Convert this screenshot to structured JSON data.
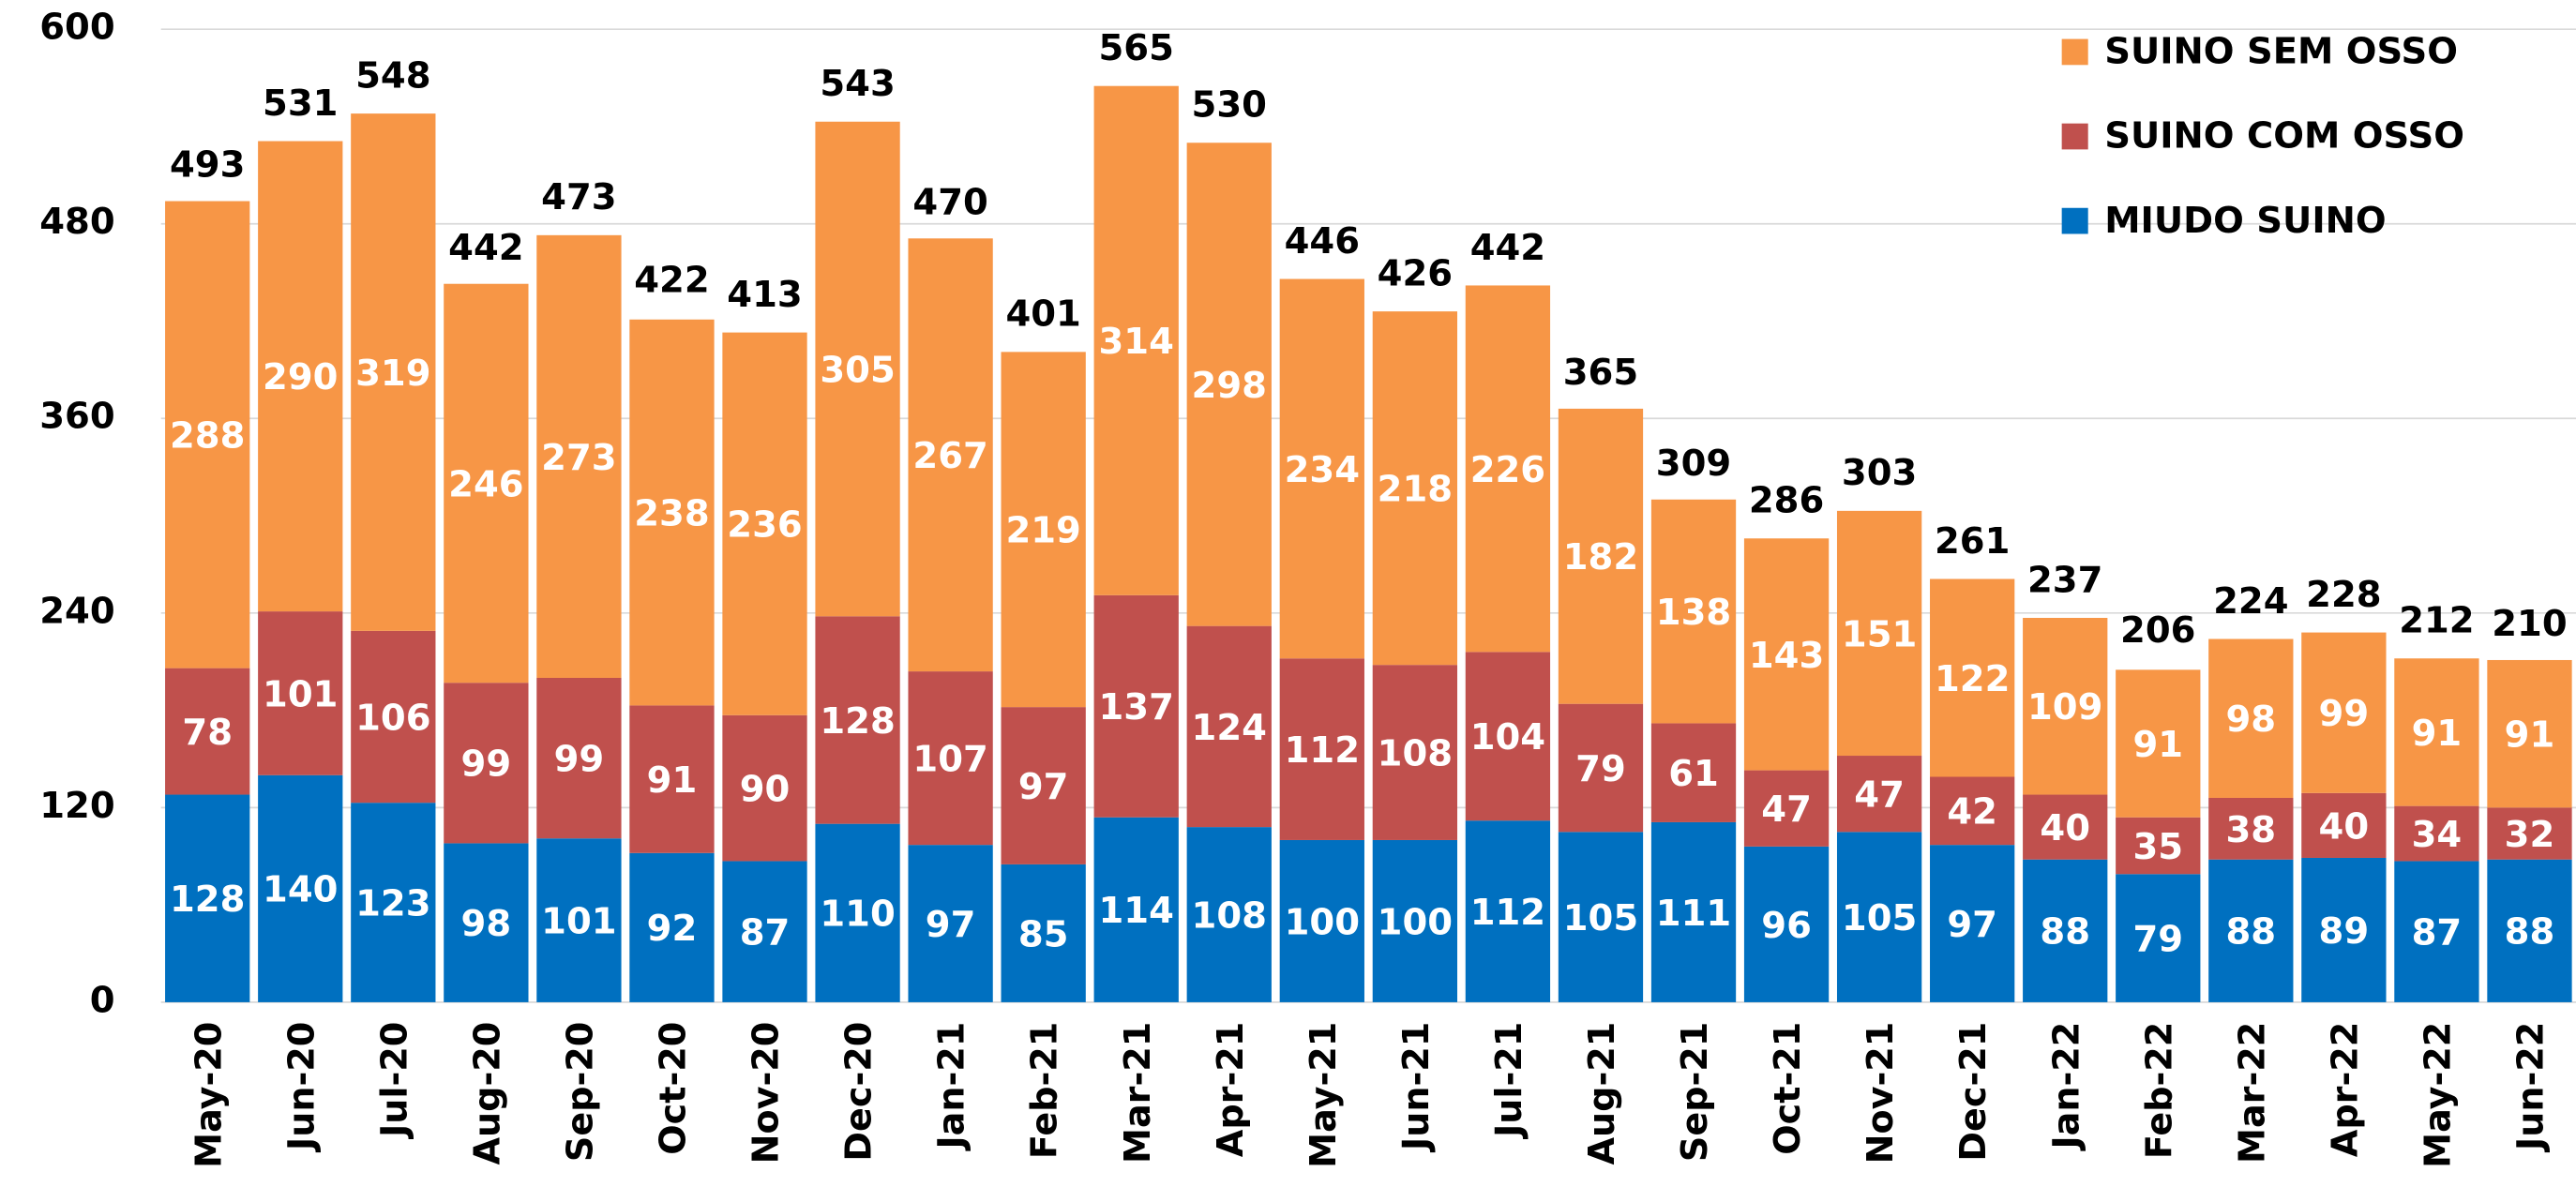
{
  "chart_data": {
    "type": "stacked_bar",
    "categories": [
      "May-20",
      "Jun-20",
      "Jul-20",
      "Aug-20",
      "Sep-20",
      "Oct-20",
      "Nov-20",
      "Dec-20",
      "Jan-21",
      "Feb-21",
      "Mar-21",
      "Apr-21",
      "May-21",
      "Jun-21",
      "Jul-21",
      "Aug-21",
      "Sep-21",
      "Oct-21",
      "Nov-21",
      "Dec-21",
      "Jan-22",
      "Feb-22",
      "Mar-22",
      "Apr-22",
      "May-22",
      "Jun-22"
    ],
    "series": [
      {
        "name": "MIUDO SUINO",
        "color": "#0070c0",
        "values": [
          128,
          140,
          123,
          98,
          101,
          92,
          87,
          110,
          97,
          85,
          114,
          108,
          100,
          100,
          112,
          105,
          111,
          96,
          105,
          97,
          88,
          79,
          88,
          89,
          87,
          88
        ]
      },
      {
        "name": "SUINO COM OSSO",
        "color": "#c0504d",
        "values": [
          78,
          101,
          106,
          99,
          99,
          91,
          90,
          128,
          107,
          97,
          137,
          124,
          112,
          108,
          104,
          79,
          61,
          47,
          47,
          42,
          40,
          35,
          38,
          40,
          34,
          32
        ]
      },
      {
        "name": "SUINO SEM OSSO",
        "color": "#f79646",
        "values": [
          288,
          290,
          319,
          246,
          273,
          238,
          236,
          305,
          267,
          219,
          314,
          298,
          234,
          218,
          226,
          182,
          138,
          143,
          151,
          122,
          109,
          91,
          98,
          99,
          91,
          91
        ]
      }
    ],
    "totals": [
      493,
      531,
      548,
      442,
      473,
      422,
      413,
      543,
      470,
      401,
      565,
      530,
      446,
      426,
      442,
      365,
      309,
      286,
      303,
      261,
      237,
      206,
      224,
      228,
      212,
      210
    ],
    "ylim": [
      0,
      600
    ],
    "yticks": [
      0,
      120,
      240,
      360,
      480,
      600
    ],
    "grid": true,
    "legend": "upper right"
  }
}
